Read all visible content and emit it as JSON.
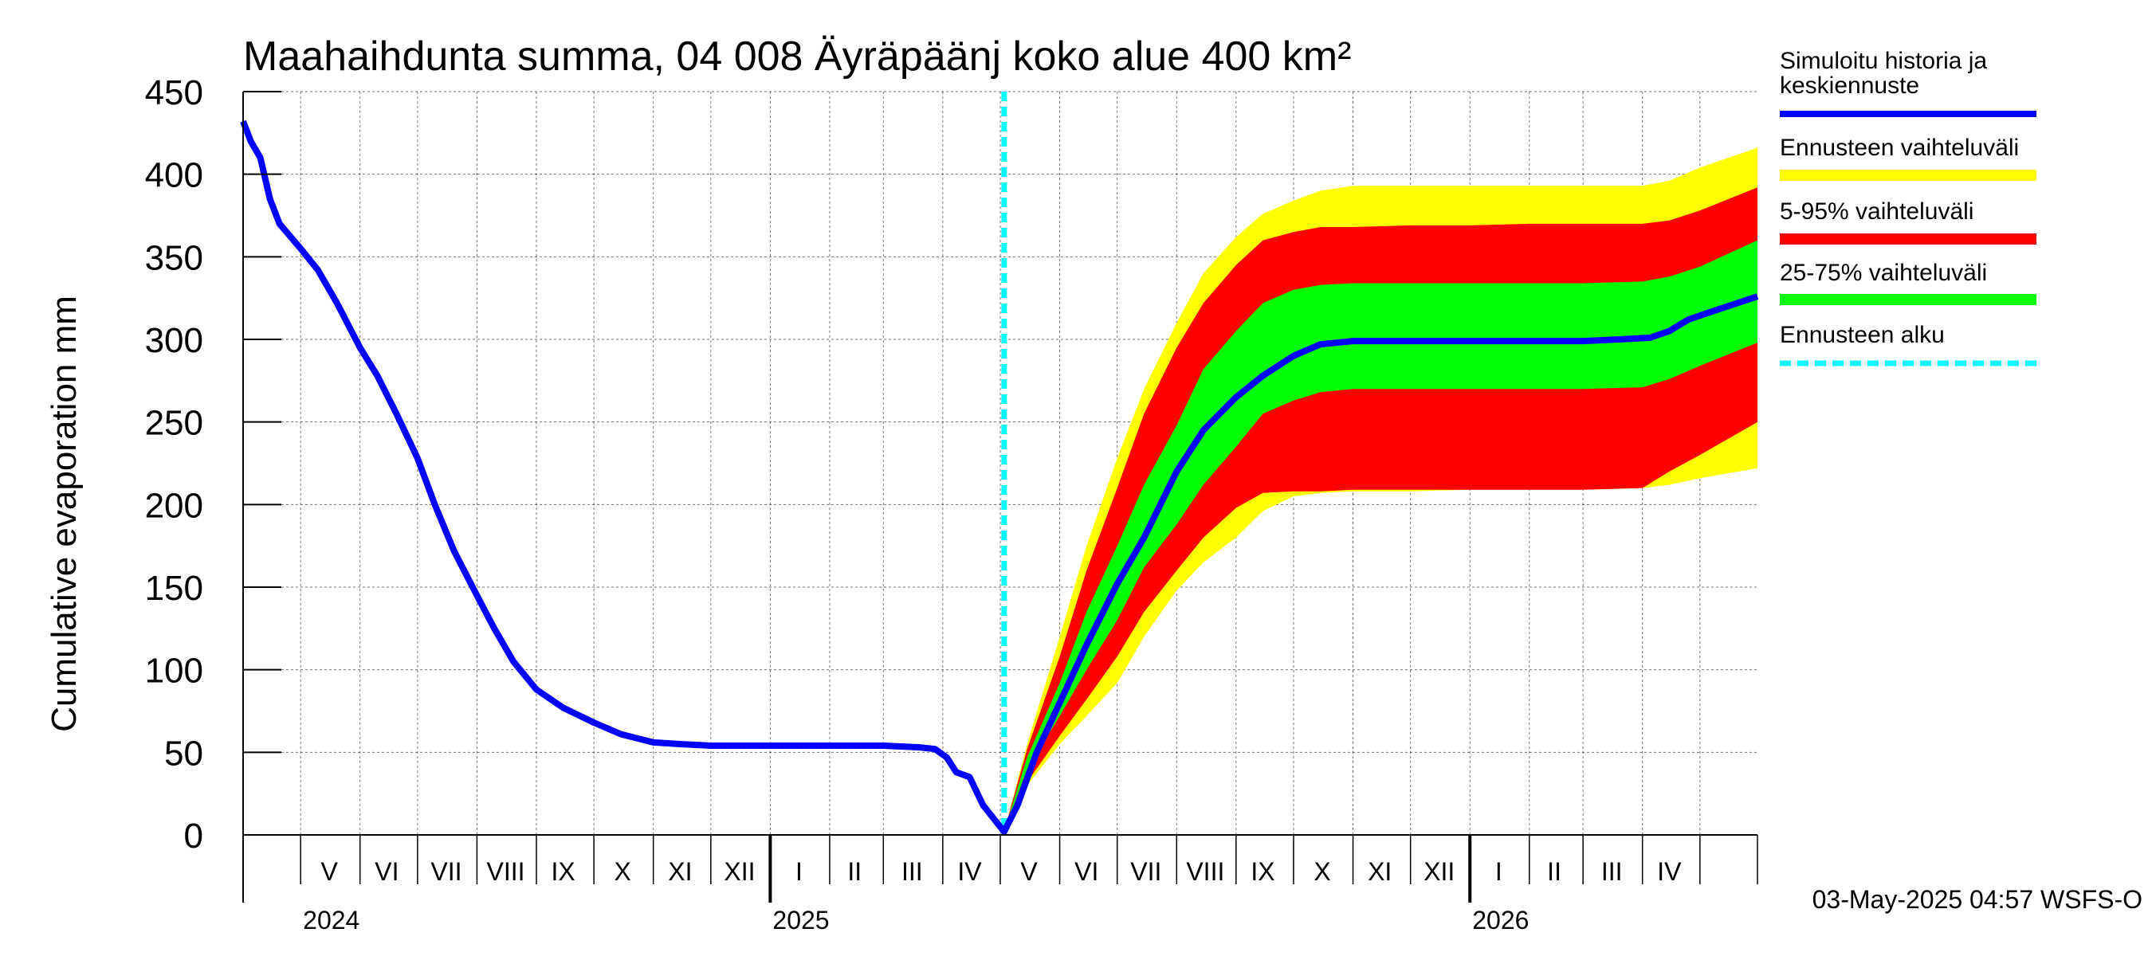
{
  "chart_data": {
    "type": "area",
    "title": "Maahaihdunta summa, 04 008 Äyräpäänj koko alue 400 km²",
    "ylabel": "Cumulative evaporation   mm",
    "ylim": [
      0,
      450
    ],
    "y_ticks": [
      0,
      50,
      100,
      150,
      200,
      250,
      300,
      350,
      400,
      450
    ],
    "xlim": [
      "2024-04-01",
      "2026-05-31"
    ],
    "forecast_start": "2025-05-03",
    "month_labels": [
      {
        "label": "V",
        "date": "2024-05-16"
      },
      {
        "label": "VI",
        "date": "2024-06-15"
      },
      {
        "label": "VII",
        "date": "2024-07-16"
      },
      {
        "label": "VIII",
        "date": "2024-08-16"
      },
      {
        "label": "IX",
        "date": "2024-09-15"
      },
      {
        "label": "X",
        "date": "2024-10-16"
      },
      {
        "label": "XI",
        "date": "2024-11-15"
      },
      {
        "label": "XII",
        "date": "2024-12-16"
      },
      {
        "label": "I",
        "date": "2025-01-16"
      },
      {
        "label": "II",
        "date": "2025-02-14"
      },
      {
        "label": "III",
        "date": "2025-03-16"
      },
      {
        "label": "IV",
        "date": "2025-04-15"
      },
      {
        "label": "V",
        "date": "2025-05-16"
      },
      {
        "label": "VI",
        "date": "2025-06-15"
      },
      {
        "label": "VII",
        "date": "2025-07-16"
      },
      {
        "label": "VIII",
        "date": "2025-08-16"
      },
      {
        "label": "IX",
        "date": "2025-09-15"
      },
      {
        "label": "X",
        "date": "2025-10-16"
      },
      {
        "label": "XI",
        "date": "2025-11-15"
      },
      {
        "label": "XII",
        "date": "2025-12-16"
      },
      {
        "label": "I",
        "date": "2026-01-16"
      },
      {
        "label": "II",
        "date": "2026-02-14"
      },
      {
        "label": "III",
        "date": "2026-03-16"
      },
      {
        "label": "IV",
        "date": "2026-04-15"
      }
    ],
    "month_boundaries": [
      "2024-05-01",
      "2024-06-01",
      "2024-07-01",
      "2024-08-01",
      "2024-09-01",
      "2024-10-01",
      "2024-11-01",
      "2024-12-01",
      "2025-01-01",
      "2025-02-01",
      "2025-03-01",
      "2025-04-01",
      "2025-05-01",
      "2025-06-01",
      "2025-07-01",
      "2025-08-01",
      "2025-09-01",
      "2025-10-01",
      "2025-11-01",
      "2025-12-01",
      "2026-01-01",
      "2026-02-01",
      "2026-03-01",
      "2026-04-01",
      "2026-05-01"
    ],
    "year_labels": [
      {
        "label": "2024",
        "date": "2024-05-01"
      },
      {
        "label": "2025",
        "date": "2025-01-01"
      },
      {
        "label": "2026",
        "date": "2026-01-01"
      }
    ],
    "series": [
      {
        "name": "Simuloitu historia ja keskiennuste",
        "color": "#0000ff",
        "points": [
          [
            "2024-04-01",
            432
          ],
          [
            "2024-04-05",
            420
          ],
          [
            "2024-04-10",
            410
          ],
          [
            "2024-04-15",
            385
          ],
          [
            "2024-04-20",
            370
          ],
          [
            "2024-05-01",
            355
          ],
          [
            "2024-05-10",
            342
          ],
          [
            "2024-05-20",
            322
          ],
          [
            "2024-06-01",
            295
          ],
          [
            "2024-06-10",
            278
          ],
          [
            "2024-06-20",
            255
          ],
          [
            "2024-07-01",
            228
          ],
          [
            "2024-07-10",
            200
          ],
          [
            "2024-07-20",
            172
          ],
          [
            "2024-08-01",
            145
          ],
          [
            "2024-08-10",
            125
          ],
          [
            "2024-08-20",
            105
          ],
          [
            "2024-09-01",
            88
          ],
          [
            "2024-09-15",
            77
          ],
          [
            "2024-10-01",
            68
          ],
          [
            "2024-10-15",
            61
          ],
          [
            "2024-11-01",
            56
          ],
          [
            "2024-11-15",
            55
          ],
          [
            "2024-12-01",
            54
          ],
          [
            "2025-01-01",
            54
          ],
          [
            "2025-02-01",
            54
          ],
          [
            "2025-03-01",
            54
          ],
          [
            "2025-03-20",
            53
          ],
          [
            "2025-03-28",
            52
          ],
          [
            "2025-04-03",
            47
          ],
          [
            "2025-04-08",
            38
          ],
          [
            "2025-04-15",
            35
          ],
          [
            "2025-04-22",
            18
          ],
          [
            "2025-05-03",
            2
          ],
          [
            "2025-05-10",
            18
          ],
          [
            "2025-05-20",
            50
          ],
          [
            "2025-06-01",
            80
          ],
          [
            "2025-06-15",
            115
          ],
          [
            "2025-07-01",
            152
          ],
          [
            "2025-07-15",
            180
          ],
          [
            "2025-08-01",
            220
          ],
          [
            "2025-08-15",
            245
          ],
          [
            "2025-09-01",
            265
          ],
          [
            "2025-09-15",
            278
          ],
          [
            "2025-10-01",
            290
          ],
          [
            "2025-10-15",
            297
          ],
          [
            "2025-11-01",
            299
          ],
          [
            "2025-12-01",
            299
          ],
          [
            "2026-01-01",
            299
          ],
          [
            "2026-02-01",
            299
          ],
          [
            "2026-03-01",
            299
          ],
          [
            "2026-03-20",
            300
          ],
          [
            "2026-04-05",
            301
          ],
          [
            "2026-04-15",
            305
          ],
          [
            "2026-04-25",
            312
          ],
          [
            "2026-05-05",
            316
          ],
          [
            "2026-05-31",
            326
          ]
        ]
      },
      {
        "name": "Ennusteen vaihteluväli",
        "color": "#ffff00",
        "band": {
          "dates": [
            "2025-05-03",
            "2025-05-15",
            "2025-06-01",
            "2025-06-15",
            "2025-07-01",
            "2025-07-15",
            "2025-08-01",
            "2025-08-15",
            "2025-09-01",
            "2025-09-15",
            "2025-10-01",
            "2025-10-15",
            "2025-11-01",
            "2025-12-01",
            "2026-01-01",
            "2026-02-01",
            "2026-03-01",
            "2026-04-01",
            "2026-04-15",
            "2026-05-01",
            "2026-05-31"
          ],
          "lower": [
            2,
            30,
            55,
            72,
            92,
            120,
            148,
            165,
            180,
            196,
            205,
            207,
            208,
            208,
            209,
            209,
            209,
            210,
            212,
            216,
            222
          ],
          "upper": [
            2,
            55,
            120,
            175,
            228,
            270,
            310,
            340,
            362,
            376,
            384,
            390,
            393,
            393,
            393,
            393,
            393,
            393,
            396,
            404,
            416
          ]
        }
      },
      {
        "name": "5-95% vaihteluväli",
        "color": "#ff0000",
        "band": {
          "dates": [
            "2025-05-03",
            "2025-05-15",
            "2025-06-01",
            "2025-06-15",
            "2025-07-01",
            "2025-07-15",
            "2025-08-01",
            "2025-08-15",
            "2025-09-01",
            "2025-09-15",
            "2025-10-01",
            "2025-10-15",
            "2025-11-01",
            "2025-12-01",
            "2026-01-01",
            "2026-02-01",
            "2026-03-01",
            "2026-04-01",
            "2026-04-15",
            "2026-05-01",
            "2026-05-31"
          ],
          "lower": [
            2,
            32,
            60,
            82,
            108,
            135,
            160,
            180,
            198,
            207,
            208,
            208,
            209,
            209,
            209,
            209,
            209,
            210,
            220,
            230,
            250
          ],
          "upper": [
            2,
            52,
            108,
            160,
            210,
            255,
            295,
            322,
            345,
            360,
            365,
            368,
            368,
            369,
            369,
            370,
            370,
            370,
            372,
            378,
            392
          ]
        }
      },
      {
        "name": "25-75% vaihteluväli",
        "color": "#00ff00",
        "band": {
          "dates": [
            "2025-05-03",
            "2025-05-15",
            "2025-06-01",
            "2025-06-15",
            "2025-07-01",
            "2025-07-15",
            "2025-08-01",
            "2025-08-15",
            "2025-09-01",
            "2025-09-15",
            "2025-10-01",
            "2025-10-15",
            "2025-11-01",
            "2025-12-01",
            "2026-01-01",
            "2026-02-01",
            "2026-03-01",
            "2026-04-01",
            "2026-04-15",
            "2026-05-01",
            "2026-05-31"
          ],
          "lower": [
            2,
            40,
            72,
            100,
            130,
            162,
            188,
            212,
            235,
            255,
            263,
            268,
            270,
            270,
            270,
            270,
            270,
            271,
            276,
            284,
            298
          ],
          "upper": [
            2,
            47,
            92,
            135,
            175,
            212,
            248,
            282,
            305,
            322,
            330,
            333,
            334,
            334,
            334,
            334,
            334,
            335,
            338,
            344,
            360
          ]
        }
      },
      {
        "name": "Ennusteen alku",
        "color": "#00ffff"
      }
    ],
    "legend": [
      {
        "label": "Simuloitu historia ja keskiennuste",
        "color": "#0000ff",
        "style": "line"
      },
      {
        "label": "Ennusteen vaihteluväli",
        "color": "#ffff00",
        "style": "band"
      },
      {
        "label": "5-95% vaihteluväli",
        "color": "#ff0000",
        "style": "band"
      },
      {
        "label": "25-75% vaihteluväli",
        "color": "#00ff00",
        "style": "band"
      },
      {
        "label": "Ennusteen alku",
        "color": "#00ffff",
        "style": "dashed"
      }
    ],
    "legend_position": "right",
    "grid": true,
    "footer": "03-May-2025 04:57 WSFS-O"
  }
}
